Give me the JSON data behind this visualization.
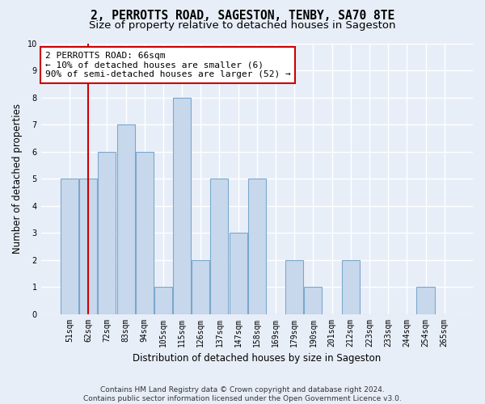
{
  "title": "2, PERROTTS ROAD, SAGESTON, TENBY, SA70 8TE",
  "subtitle": "Size of property relative to detached houses in Sageston",
  "xlabel": "Distribution of detached houses by size in Sageston",
  "ylabel": "Number of detached properties",
  "bins": [
    "51sqm",
    "62sqm",
    "72sqm",
    "83sqm",
    "94sqm",
    "105sqm",
    "115sqm",
    "126sqm",
    "137sqm",
    "147sqm",
    "158sqm",
    "169sqm",
    "179sqm",
    "190sqm",
    "201sqm",
    "212sqm",
    "223sqm",
    "233sqm",
    "244sqm",
    "254sqm",
    "265sqm"
  ],
  "values": [
    5,
    5,
    6,
    7,
    6,
    1,
    8,
    2,
    5,
    3,
    5,
    0,
    2,
    1,
    0,
    2,
    0,
    0,
    0,
    1,
    0
  ],
  "bar_color": "#c8d8ec",
  "bar_edge_color": "#7aa8cc",
  "vline_color": "#cc0000",
  "annotation_text": "2 PERROTTS ROAD: 66sqm\n← 10% of detached houses are smaller (6)\n90% of semi-detached houses are larger (52) →",
  "annotation_box_color": "white",
  "annotation_box_edge_color": "#cc0000",
  "ylim": [
    0,
    10
  ],
  "yticks": [
    0,
    1,
    2,
    3,
    4,
    5,
    6,
    7,
    8,
    9,
    10
  ],
  "footer": "Contains HM Land Registry data © Crown copyright and database right 2024.\nContains public sector information licensed under the Open Government Licence v3.0.",
  "background_color": "#e8eef8",
  "plot_bg_color": "#e8eef8",
  "grid_color": "#ffffff",
  "title_fontsize": 10.5,
  "subtitle_fontsize": 9.5,
  "axis_label_fontsize": 8.5,
  "tick_fontsize": 7,
  "annotation_fontsize": 8,
  "footer_fontsize": 6.5,
  "vline_x_index": 1
}
